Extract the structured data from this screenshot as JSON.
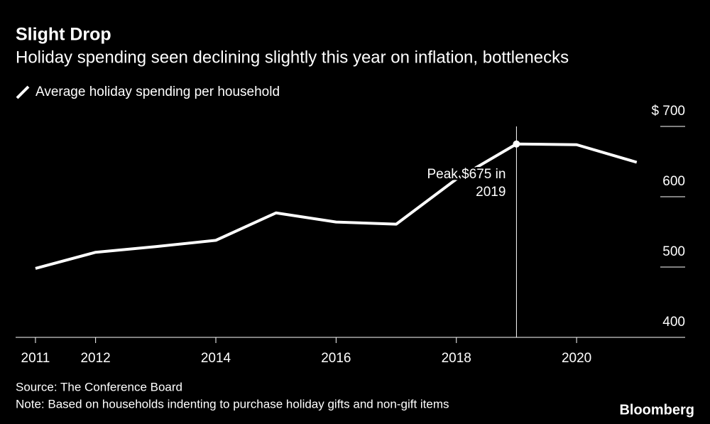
{
  "chart_data": {
    "type": "line",
    "title": "Slight Drop",
    "subtitle": "Holiday spending seen declining slightly this year on inflation, bottlenecks",
    "x": [
      2011,
      2012,
      2013,
      2014,
      2015,
      2016,
      2017,
      2018,
      2019,
      2020,
      2021
    ],
    "series": [
      {
        "name": "Average holiday spending per household",
        "color": "#ffffff",
        "values": [
          498,
          521,
          529,
          538,
          577,
          564,
          561,
          625,
          675,
          674,
          649
        ]
      }
    ],
    "xlim": [
      2010.67,
      2021.77
    ],
    "xticks": [
      2011,
      2012,
      2014,
      2016,
      2018,
      2020
    ],
    "ylim": [
      400,
      700
    ],
    "yticks": [
      400,
      500,
      600,
      {
        "value": 700,
        "label": "$ 700"
      }
    ],
    "annotation": {
      "x": 2019,
      "y": 675,
      "lines": [
        "Peak $675 in",
        "2019"
      ]
    },
    "source": "Source: The Conference Board",
    "note": "Note: Based on households indenting to purchase holiday gifts and non-gift items",
    "logo": "Bloomberg"
  }
}
